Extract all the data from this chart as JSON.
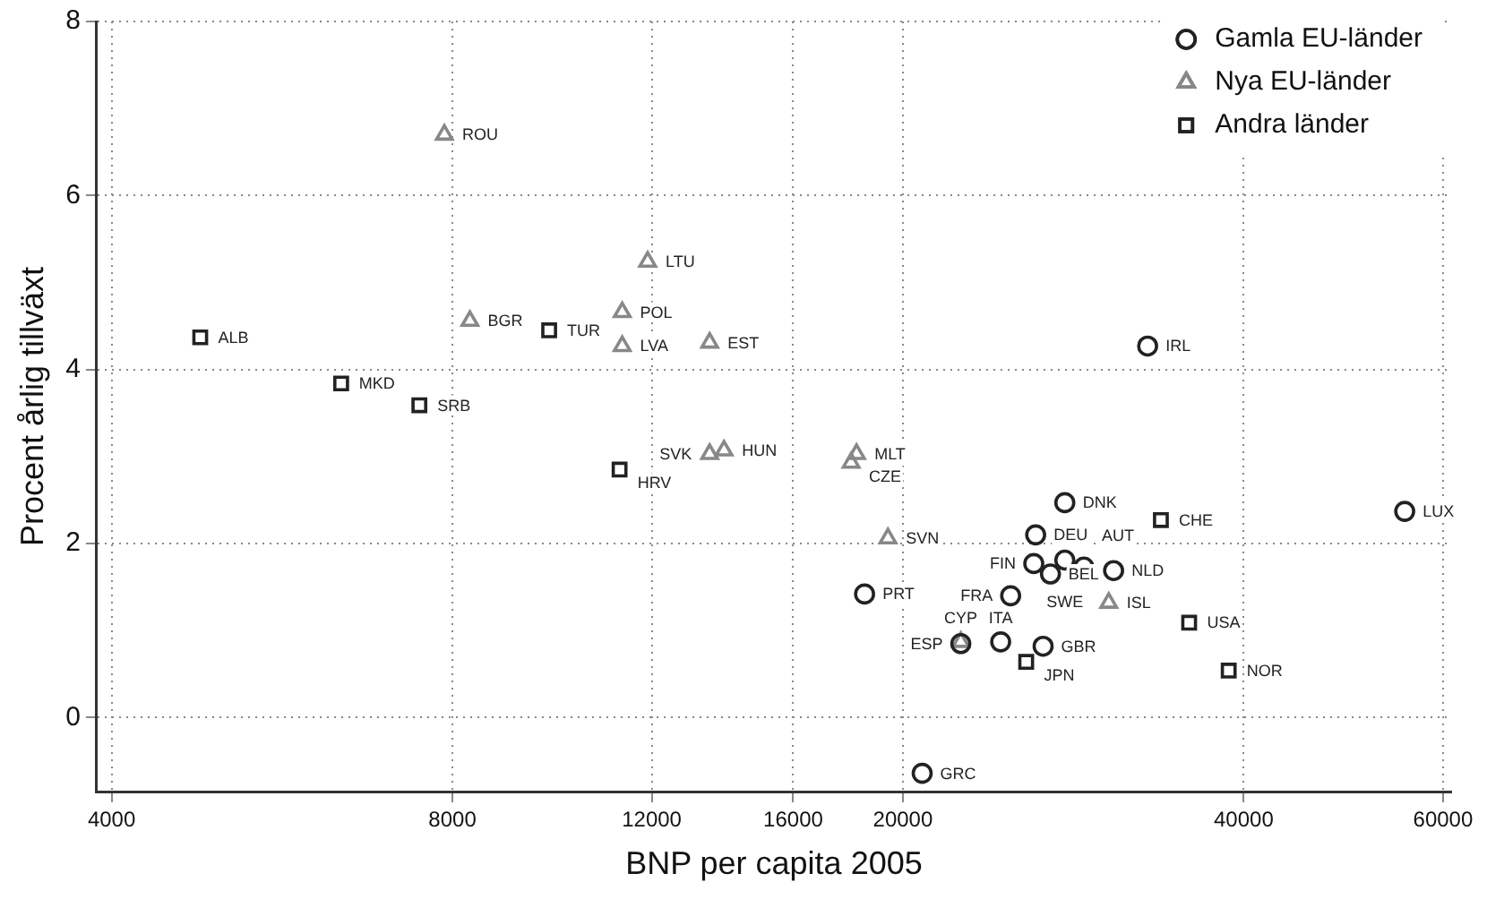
{
  "chart_data": {
    "type": "scatter",
    "xlabel": "BNP per capita 2005",
    "ylabel": "Procent årlig tillväxt",
    "log": "x",
    "xlim": [
      3880,
      61000
    ],
    "xticks": [
      4000,
      8000,
      12000,
      16000,
      20000,
      40000,
      60000
    ],
    "ylim": [
      -0.85,
      8
    ],
    "yticks": [
      0,
      2,
      4,
      6,
      8
    ],
    "grid": true,
    "legend": "top right",
    "series": [
      {
        "name": "Gamla EU-länder",
        "color": "#222222",
        "marker": "circle",
        "x": [
          32900,
          55500,
          27800,
          26200,
          26100,
          27800,
          28900,
          27000,
          30700,
          24900,
          18500,
          24400,
          22500,
          26600,
          20800
        ],
        "values": [
          4.27,
          2.37,
          2.47,
          2.1,
          1.77,
          1.81,
          1.73,
          1.65,
          1.69,
          1.4,
          1.42,
          0.87,
          0.85,
          0.82,
          -0.64
        ],
        "value_labels": [
          "IRL",
          "LUX",
          "DNK",
          "DEU",
          "FIN",
          "SWE",
          "AUT",
          "BEL",
          "NLD",
          "FRA",
          "PRT",
          "ITA",
          "ESP",
          "GBR",
          "GRC"
        ]
      },
      {
        "name": "Nya EU-länder",
        "color": "#888888",
        "marker": "triangle",
        "x": [
          7870,
          11900,
          11300,
          8290,
          11300,
          13500,
          13500,
          13900,
          18200,
          18000,
          19400,
          30400,
          22500
        ],
        "values": [
          6.7,
          5.24,
          4.66,
          4.56,
          4.27,
          4.31,
          3.03,
          3.07,
          3.03,
          2.93,
          2.06,
          1.32,
          0.87
        ],
        "value_labels": [
          "ROU",
          "LTU",
          "POL",
          "BGR",
          "LVA",
          "EST",
          "SVK",
          "HUN",
          "MLT",
          "CZE",
          "SVN",
          "ISL",
          "CYP"
        ]
      },
      {
        "name": "Andra länder",
        "color": "#222222",
        "marker": "square",
        "x": [
          4790,
          6380,
          7480,
          9740,
          11240,
          33800,
          35800,
          25700,
          38800
        ],
        "values": [
          4.37,
          3.84,
          3.59,
          4.45,
          2.85,
          2.27,
          1.09,
          0.64,
          0.54
        ],
        "value_labels": [
          "ALB",
          "MKD",
          "SRB",
          "TUR",
          "HRV",
          "CHE",
          "USA",
          "JPN",
          "NOR"
        ]
      }
    ]
  }
}
